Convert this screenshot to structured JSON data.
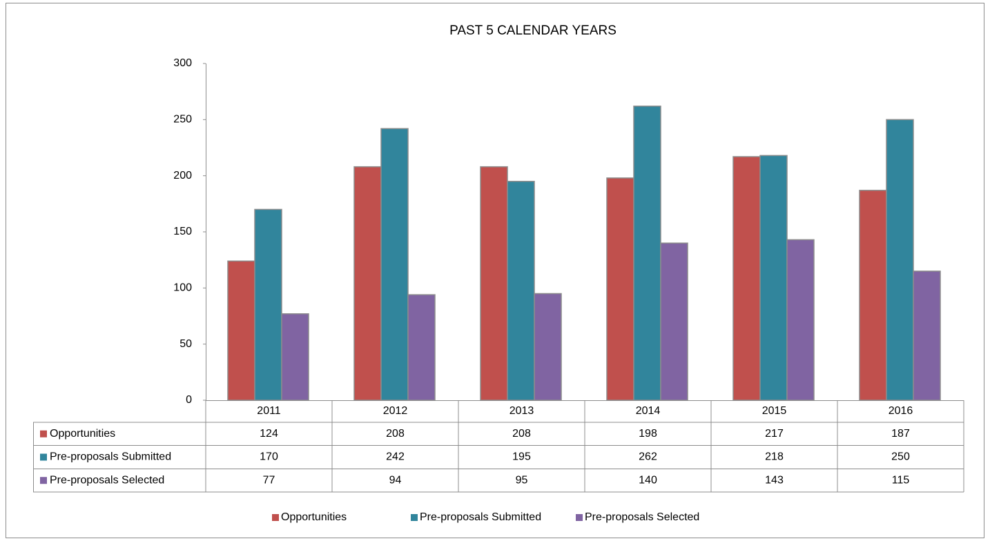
{
  "chart_data": {
    "type": "bar",
    "title": "PAST 5 CALENDAR YEARS",
    "categories": [
      "2011",
      "2012",
      "2013",
      "2014",
      "2015",
      "2016"
    ],
    "series": [
      {
        "name": "Opportunities",
        "color": "#c0504d",
        "values": [
          124,
          208,
          208,
          198,
          217,
          187
        ]
      },
      {
        "name": "Pre-proposals Submitted",
        "color": "#31859c",
        "values": [
          170,
          242,
          195,
          262,
          218,
          250
        ]
      },
      {
        "name": "Pre-proposals Selected",
        "color": "#8064a2",
        "values": [
          77,
          94,
          95,
          140,
          143,
          115
        ]
      }
    ],
    "ylim": [
      0,
      300
    ],
    "yticks": [
      0,
      50,
      100,
      150,
      200,
      250,
      300
    ],
    "grid": false,
    "legend": "bottom"
  }
}
